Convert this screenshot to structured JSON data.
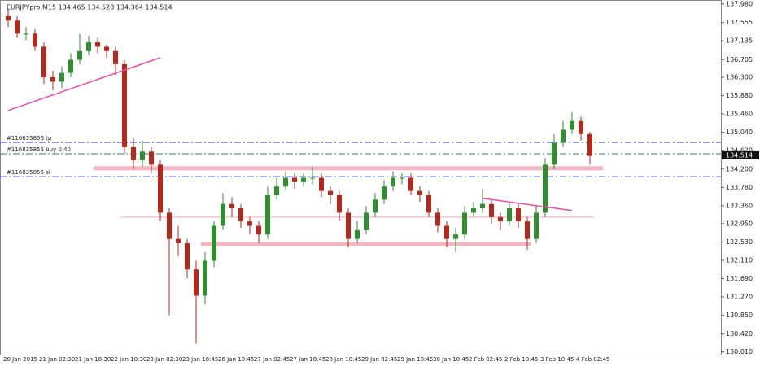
{
  "chart_data": {
    "type": "candlestick",
    "title": "EURJPYpro,M15  134.465 134.528 134.364 134.514",
    "up_color": "#2f8f2f",
    "down_color": "#b5281c",
    "categories": [
      "20 Jan 2015",
      null,
      null,
      null,
      "21 Jan 02:30",
      null,
      null,
      null,
      "21 Jan 18:30",
      null,
      null,
      null,
      "22 Jan 10:30",
      null,
      null,
      null,
      "23 Jan 02:30",
      null,
      null,
      null,
      "23 Jan 18:45",
      null,
      null,
      null,
      "26 Jan 10:45",
      null,
      null,
      null,
      "27 Jan 02:45",
      null,
      null,
      null,
      "27 Jan 18:45",
      null,
      null,
      null,
      "28 Jan 10:45",
      null,
      null,
      null,
      "29 Jan 02:45",
      null,
      null,
      null,
      "29 Jan 18:45",
      null,
      null,
      null,
      "30 Jan 10:45",
      null,
      null,
      null,
      "2 Feb 02:45",
      null,
      null,
      null,
      "2 Feb 18:45",
      null,
      null,
      null,
      "3 Feb 10:45",
      null,
      null,
      null,
      "4 Feb 02:45",
      null
    ],
    "open": [
      137.7,
      137.6,
      137.3,
      137.3,
      137.0,
      136.3,
      136.2,
      136.4,
      136.7,
      136.9,
      137.1,
      137.0,
      136.9,
      136.6,
      134.7,
      134.4,
      134.6,
      134.3,
      133.2,
      132.6,
      132.5,
      131.9,
      131.3,
      132.1,
      132.9,
      133.4,
      133.3,
      133.0,
      132.9,
      132.7,
      133.6,
      133.8,
      134.0,
      133.9,
      134.0,
      134.0,
      133.7,
      133.6,
      133.2,
      132.6,
      132.8,
      133.2,
      133.5,
      133.8,
      134.0,
      134.0,
      133.7,
      133.6,
      133.2,
      132.9,
      132.6,
      132.7,
      133.2,
      133.3,
      133.4,
      133.1,
      133.0,
      133.3,
      133.0,
      132.6,
      133.2,
      134.3,
      134.8,
      135.1,
      135.3,
      135.0
    ],
    "high": [
      137.85,
      137.7,
      137.45,
      137.4,
      137.1,
      136.45,
      136.55,
      136.85,
      137.3,
      137.25,
      137.2,
      137.05,
      137.0,
      136.7,
      134.9,
      134.85,
      134.7,
      134.4,
      133.3,
      132.9,
      132.6,
      132.1,
      132.3,
      133.0,
      133.65,
      133.55,
      133.4,
      133.1,
      133.0,
      133.8,
      134.0,
      134.15,
      134.1,
      134.1,
      134.25,
      134.1,
      133.8,
      133.7,
      133.3,
      133.0,
      133.35,
      133.65,
      133.95,
      134.15,
      134.1,
      134.1,
      133.8,
      133.7,
      133.3,
      133.0,
      132.85,
      133.35,
      133.45,
      133.75,
      133.5,
      133.2,
      133.45,
      133.4,
      133.1,
      133.35,
      134.45,
      135.0,
      135.3,
      135.5,
      135.4,
      135.05
    ],
    "low": [
      137.45,
      137.2,
      137.15,
      136.9,
      136.15,
      136.0,
      136.05,
      136.3,
      136.6,
      136.8,
      136.85,
      136.75,
      136.35,
      134.55,
      134.2,
      134.25,
      134.1,
      133.0,
      130.85,
      132.2,
      131.7,
      130.2,
      131.1,
      131.95,
      132.8,
      133.1,
      132.85,
      132.7,
      132.5,
      132.6,
      133.5,
      133.7,
      133.75,
      133.8,
      133.85,
      133.55,
      133.4,
      133.0,
      132.4,
      132.5,
      132.7,
      133.1,
      133.4,
      133.7,
      133.85,
      133.6,
      133.45,
      133.1,
      132.75,
      132.4,
      132.3,
      132.6,
      133.1,
      133.2,
      132.95,
      132.8,
      132.9,
      132.85,
      132.35,
      132.5,
      133.1,
      134.2,
      134.7,
      135.0,
      134.85,
      134.3
    ],
    "close": [
      137.6,
      137.3,
      137.3,
      137.0,
      136.3,
      136.2,
      136.4,
      136.7,
      136.9,
      137.1,
      137.0,
      136.9,
      136.6,
      134.7,
      134.4,
      134.6,
      134.3,
      133.2,
      132.6,
      132.5,
      131.9,
      131.3,
      132.1,
      132.9,
      133.4,
      133.3,
      133.0,
      132.9,
      132.7,
      133.6,
      133.8,
      134.0,
      133.9,
      134.0,
      134.0,
      133.7,
      133.6,
      133.2,
      132.6,
      132.8,
      133.2,
      133.5,
      133.8,
      134.0,
      134.0,
      133.7,
      133.6,
      133.2,
      132.9,
      132.6,
      132.7,
      133.2,
      133.3,
      133.4,
      133.1,
      133.0,
      133.3,
      133.0,
      132.6,
      133.2,
      134.3,
      134.8,
      135.1,
      135.3,
      135.0,
      134.5
    ],
    "ylim": [
      129.93,
      138.07
    ],
    "yticks": [
      {
        "value": 130.01,
        "label": "130.010"
      },
      {
        "value": 130.42,
        "label": "130.420"
      },
      {
        "value": 130.85,
        "label": "130.850"
      },
      {
        "value": 131.27,
        "label": "131.270"
      },
      {
        "value": 131.69,
        "label": "131.690"
      },
      {
        "value": 132.11,
        "label": "132.110"
      },
      {
        "value": 132.53,
        "label": "132.530"
      },
      {
        "value": 132.95,
        "label": "132.950"
      },
      {
        "value": 133.36,
        "label": "133.360"
      },
      {
        "value": 133.78,
        "label": "133.780"
      },
      {
        "value": 134.2,
        "label": "134.200"
      },
      {
        "value": 134.62,
        "label": "134.620"
      },
      {
        "value": 135.04,
        "label": "135.040"
      },
      {
        "value": 135.46,
        "label": "135.460"
      },
      {
        "value": 135.88,
        "label": "135.880"
      },
      {
        "value": 136.3,
        "label": "136.300"
      },
      {
        "value": 136.705,
        "label": "136.705"
      },
      {
        "value": 137.135,
        "label": "137.135"
      },
      {
        "value": 137.555,
        "label": "137.555"
      },
      {
        "value": 137.98,
        "label": "137.980"
      }
    ],
    "current_price": {
      "value": 134.514,
      "label": "134.514"
    },
    "order_lines": [
      {
        "label": "#116835856 tp",
        "value": 134.81,
        "color": "#2233cc"
      },
      {
        "label": "#116835856 buy 0.40",
        "value": 134.55,
        "color": "#2e8b57"
      },
      {
        "label": "#116835856 sl",
        "value": 134.03,
        "color": "#2233cc"
      }
    ],
    "zones": [
      {
        "value": 134.22,
        "from": 10,
        "to": 66,
        "color": "#f4b6c2",
        "width": 5
      },
      {
        "value": 133.1,
        "from": 13,
        "to": 65,
        "color": "#f4a6b8",
        "width": 1
      },
      {
        "value": 132.48,
        "from": 22,
        "to": 58,
        "color": "#f4b6c2",
        "width": 5
      }
    ],
    "trendlines": [
      {
        "from": 0,
        "to": 17,
        "values": [
          135.54,
          136.75
        ],
        "color": "#e64fa8"
      },
      {
        "from": 53,
        "to": 63,
        "values": [
          133.53,
          133.25
        ],
        "color": "#e64fa8"
      }
    ]
  }
}
